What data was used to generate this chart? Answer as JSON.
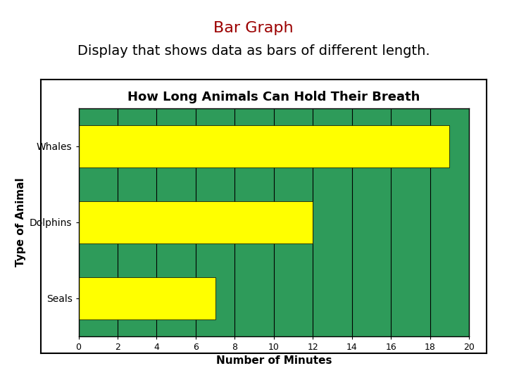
{
  "title": "Bar Graph",
  "subtitle": "Display that shows data as bars of different length.",
  "chart_title": "How Long Animals Can Hold Their Breath",
  "xlabel": "Number of Minutes",
  "ylabel": "Type of Animal",
  "categories": [
    "Seals",
    "Dolphins",
    "Whales"
  ],
  "values": [
    7,
    12,
    19
  ],
  "bar_color_yellow": "#FFFF00",
  "background_color_green": "#2E9B5A",
  "xlim": [
    0,
    20
  ],
  "xticks": [
    0,
    2,
    4,
    6,
    8,
    10,
    12,
    14,
    16,
    18,
    20
  ],
  "title_color": "#9B0000",
  "subtitle_color": "#000000",
  "outer_bg": "#ffffff",
  "title_fontsize": 16,
  "subtitle_fontsize": 14,
  "chart_title_fontsize": 13
}
